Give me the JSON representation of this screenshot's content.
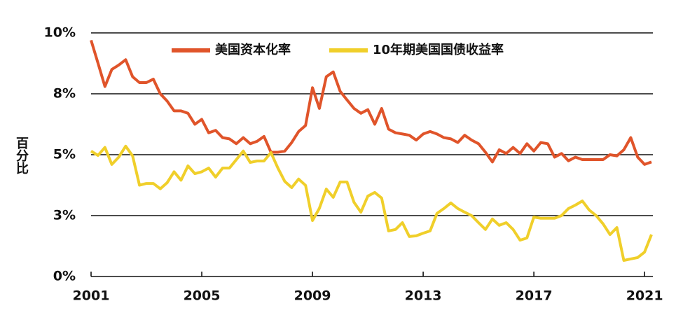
{
  "chart_data": {
    "type": "line",
    "ylabel": "百分比",
    "x": [
      2001,
      2001.25,
      2001.5,
      2001.75,
      2002,
      2002.25,
      2002.5,
      2002.75,
      2003,
      2003.25,
      2003.5,
      2003.75,
      2004,
      2004.25,
      2004.5,
      2004.75,
      2005,
      2005.25,
      2005.5,
      2005.75,
      2006,
      2006.25,
      2006.5,
      2006.75,
      2007,
      2007.25,
      2007.5,
      2007.75,
      2008,
      2008.25,
      2008.5,
      2008.75,
      2009,
      2009.25,
      2009.5,
      2009.75,
      2010,
      2010.25,
      2010.5,
      2010.75,
      2011,
      2011.25,
      2011.5,
      2011.75,
      2012,
      2012.25,
      2012.5,
      2012.75,
      2013,
      2013.25,
      2013.5,
      2013.75,
      2014,
      2014.25,
      2014.5,
      2014.75,
      2015,
      2015.25,
      2015.5,
      2015.75,
      2016,
      2016.25,
      2016.5,
      2016.75,
      2017,
      2017.25,
      2017.5,
      2017.75,
      2018,
      2018.25,
      2018.5,
      2018.75,
      2019,
      2019.25,
      2019.5,
      2019.75,
      2020,
      2020.25,
      2020.5,
      2020.75,
      2021,
      2021.25
    ],
    "series": [
      {
        "name": "美国资本化率",
        "color": "#e0542a",
        "values": [
          9.7,
          8.76,
          7.8,
          8.5,
          8.68,
          8.9,
          8.2,
          7.96,
          7.96,
          8.1,
          7.5,
          7.2,
          6.8,
          6.8,
          6.7,
          6.25,
          6.45,
          5.9,
          6.0,
          5.7,
          5.65,
          5.45,
          5.7,
          5.45,
          5.55,
          5.75,
          5.1,
          5.1,
          5.15,
          5.5,
          5.95,
          6.2,
          7.75,
          6.9,
          8.2,
          8.4,
          7.6,
          7.25,
          6.9,
          6.7,
          6.85,
          6.25,
          6.9,
          6.05,
          5.9,
          5.85,
          5.8,
          5.6,
          5.85,
          5.95,
          5.85,
          5.7,
          5.65,
          5.5,
          5.8,
          5.6,
          5.45,
          5.1,
          4.7,
          5.2,
          5.05,
          5.3,
          5.05,
          5.45,
          5.15,
          5.5,
          5.45,
          4.9,
          5.05,
          4.75,
          4.9,
          4.8,
          4.8,
          4.8,
          4.8,
          5.0,
          4.95,
          5.2,
          5.7,
          4.9,
          4.6,
          4.7
        ]
      },
      {
        "name": "10年期美国国债收益率",
        "color": "#f0cf2a",
        "values": [
          5.15,
          4.97,
          5.3,
          4.6,
          4.9,
          5.35,
          4.95,
          3.75,
          3.82,
          3.82,
          3.6,
          3.85,
          4.3,
          3.95,
          4.54,
          4.22,
          4.3,
          4.45,
          4.08,
          4.45,
          4.45,
          4.8,
          5.15,
          4.68,
          4.74,
          4.74,
          5.09,
          4.45,
          3.9,
          3.65,
          4.0,
          3.74,
          2.3,
          2.8,
          3.59,
          3.25,
          3.88,
          3.88,
          3.05,
          2.64,
          3.3,
          3.45,
          3.22,
          1.87,
          1.93,
          2.21,
          1.64,
          1.67,
          1.78,
          1.87,
          2.59,
          2.79,
          3.02,
          2.79,
          2.64,
          2.5,
          2.21,
          1.93,
          2.36,
          2.1,
          2.21,
          1.93,
          1.49,
          1.58,
          2.44,
          2.39,
          2.39,
          2.39,
          2.5,
          2.79,
          2.93,
          3.1,
          2.73,
          2.5,
          2.16,
          1.72,
          2.01,
          0.66,
          0.72,
          0.78,
          1.0,
          1.72
        ]
      }
    ],
    "xlim": [
      2001,
      2021.3
    ],
    "xticks": [
      2001,
      2005,
      2009,
      2013,
      2017,
      2021
    ],
    "ylim": [
      0,
      10
    ],
    "yticks": [
      {
        "value": 0,
        "label": "0%"
      },
      {
        "value": 2.5,
        "label": "3%"
      },
      {
        "value": 5,
        "label": "5%"
      },
      {
        "value": 7.5,
        "label": "8%"
      },
      {
        "value": 10,
        "label": "10%"
      }
    ],
    "grid": true,
    "legend": "top"
  }
}
